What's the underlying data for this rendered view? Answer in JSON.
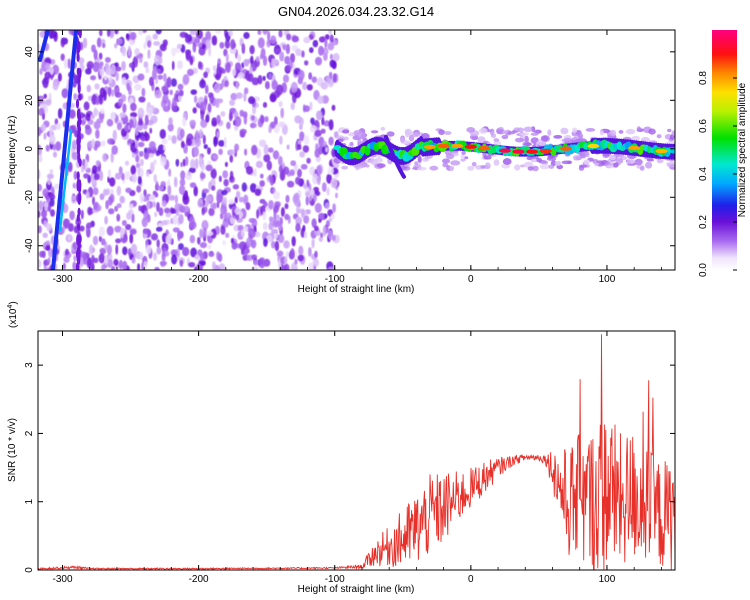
{
  "figure": {
    "title": "GN04.2026.034.23.32.G14"
  },
  "colors": {
    "line": "#e8302a",
    "axis": "#000000",
    "weak": "#7a1fe0"
  },
  "chart_data": [
    {
      "type": "heatmap",
      "xlabel": "Height of straight line (km)",
      "ylabel": "Frequency (Hz)",
      "xlim": [
        -318,
        150
      ],
      "ylim": [
        -50,
        49
      ],
      "x_ticks": [
        -300,
        -200,
        -100,
        0,
        100
      ],
      "x_tick_labels": [
        "-300",
        "-200",
        "-100",
        "0",
        "100"
      ],
      "y_ticks": [
        -40,
        -20,
        0,
        20,
        40
      ],
      "y_tick_labels": [
        "-40",
        "-20",
        "0",
        "20",
        "40"
      ],
      "colorbar": {
        "label": "Normalized spectral amplitude",
        "range": [
          0,
          1
        ],
        "ticks": [
          0.0,
          0.2,
          0.4,
          0.6,
          0.8
        ],
        "tick_labels": [
          "0.0",
          "0.2",
          "0.4",
          "0.6",
          "0.8"
        ]
      },
      "regions": [
        {
          "name": "noise",
          "x_range": [
            -318,
            -98
          ],
          "freq_range": [
            -50,
            49
          ],
          "amplitude": 0.15
        },
        {
          "name": "diagonal-streak",
          "x_range": [
            -318,
            -290
          ],
          "freq_at_start": -50,
          "freq_at_end": 49,
          "amplitude": 0.3
        },
        {
          "name": "signal-band",
          "x_range": [
            -98,
            150
          ],
          "center_freq": 0,
          "amplitude": 0.75
        }
      ]
    },
    {
      "type": "line",
      "xlabel": "Height of straight line (km)",
      "ylabel": "SNR (10 * v/v)",
      "y_scale_label_base": "(x10",
      "y_scale_label_exp": "4",
      "y_scale_label_close": ")",
      "xlim": [
        -318,
        150
      ],
      "ylim": [
        0,
        3.5
      ],
      "x_ticks": [
        -300,
        -200,
        -100,
        0,
        100
      ],
      "x_tick_labels": [
        "-300",
        "-200",
        "-100",
        "0",
        "100"
      ],
      "y_ticks": [
        0,
        1,
        2,
        3
      ],
      "y_tick_labels": [
        "0",
        "1",
        "2",
        "3"
      ],
      "series": [
        {
          "name": "SNR",
          "color": "#e8302a",
          "x": [
            -318,
            -290,
            -280,
            -200,
            -100,
            -80,
            -70,
            -60,
            -50,
            -40,
            -30,
            -20,
            -10,
            0,
            10,
            20,
            30,
            40,
            50,
            55,
            60,
            70,
            80,
            90,
            100,
            110,
            120,
            130,
            140,
            150
          ],
          "center": [
            0.02,
            0.04,
            0.02,
            0.02,
            0.03,
            0.05,
            0.25,
            0.35,
            0.45,
            0.6,
            0.8,
            0.9,
            1.05,
            1.2,
            1.35,
            1.5,
            1.6,
            1.65,
            1.65,
            1.62,
            1.5,
            1.0,
            1.0,
            1.0,
            1.2,
            1.0,
            1.1,
            0.9,
            0.8,
            0.8
          ],
          "spread": [
            0.01,
            0.02,
            0.01,
            0.01,
            0.01,
            0.03,
            0.2,
            0.3,
            0.45,
            0.55,
            0.6,
            0.55,
            0.4,
            0.3,
            0.25,
            0.15,
            0.08,
            0.05,
            0.05,
            0.08,
            0.3,
            0.8,
            1.0,
            1.1,
            1.25,
            1.0,
            1.0,
            0.9,
            0.8,
            0.9
          ]
        }
      ]
    }
  ]
}
